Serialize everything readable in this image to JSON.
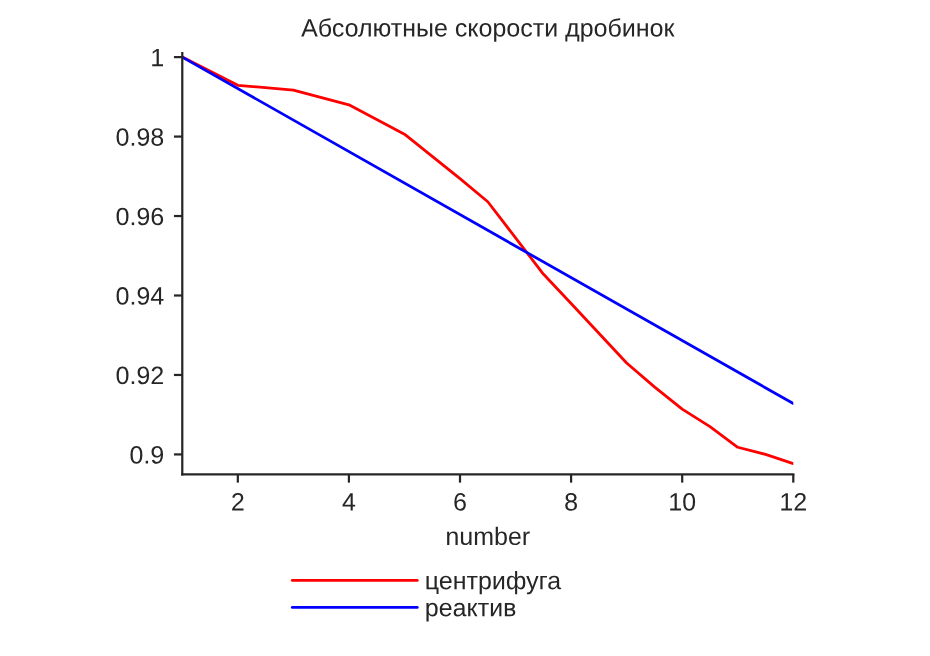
{
  "chart_data": {
    "type": "line",
    "title": "Абсолютные скорости дробинок",
    "xlabel": "number",
    "xlim": [
      1,
      12
    ],
    "xticks": [
      2,
      4,
      6,
      8,
      10,
      12
    ],
    "ylim": [
      0.895,
      1.001
    ],
    "yticks": [
      0.9,
      0.92,
      0.94,
      0.96,
      0.98,
      {
        "value": 1,
        "label": "1"
      }
    ],
    "grid": false,
    "legend": "bottom",
    "line_style": "solid",
    "marker": "none",
    "series": [
      {
        "name": "центрифуга",
        "color": "#ff0000",
        "x": [
          1,
          2,
          3,
          4,
          5,
          6,
          6.5,
          7,
          7.5,
          8,
          8.5,
          9,
          9.5,
          10,
          10.5,
          11,
          11.5,
          12
        ],
        "values": [
          1.0,
          0.9929,
          0.9917,
          0.988,
          0.9806,
          0.9694,
          0.9636,
          0.9545,
          0.9454,
          0.938,
          0.9305,
          0.923,
          0.917,
          0.9114,
          0.907,
          0.9018,
          0.9,
          0.8977
        ]
      },
      {
        "name": "реактив",
        "color": "#0000ff",
        "x": [
          1,
          12
        ],
        "values": [
          1.0,
          0.9128
        ]
      }
    ]
  }
}
